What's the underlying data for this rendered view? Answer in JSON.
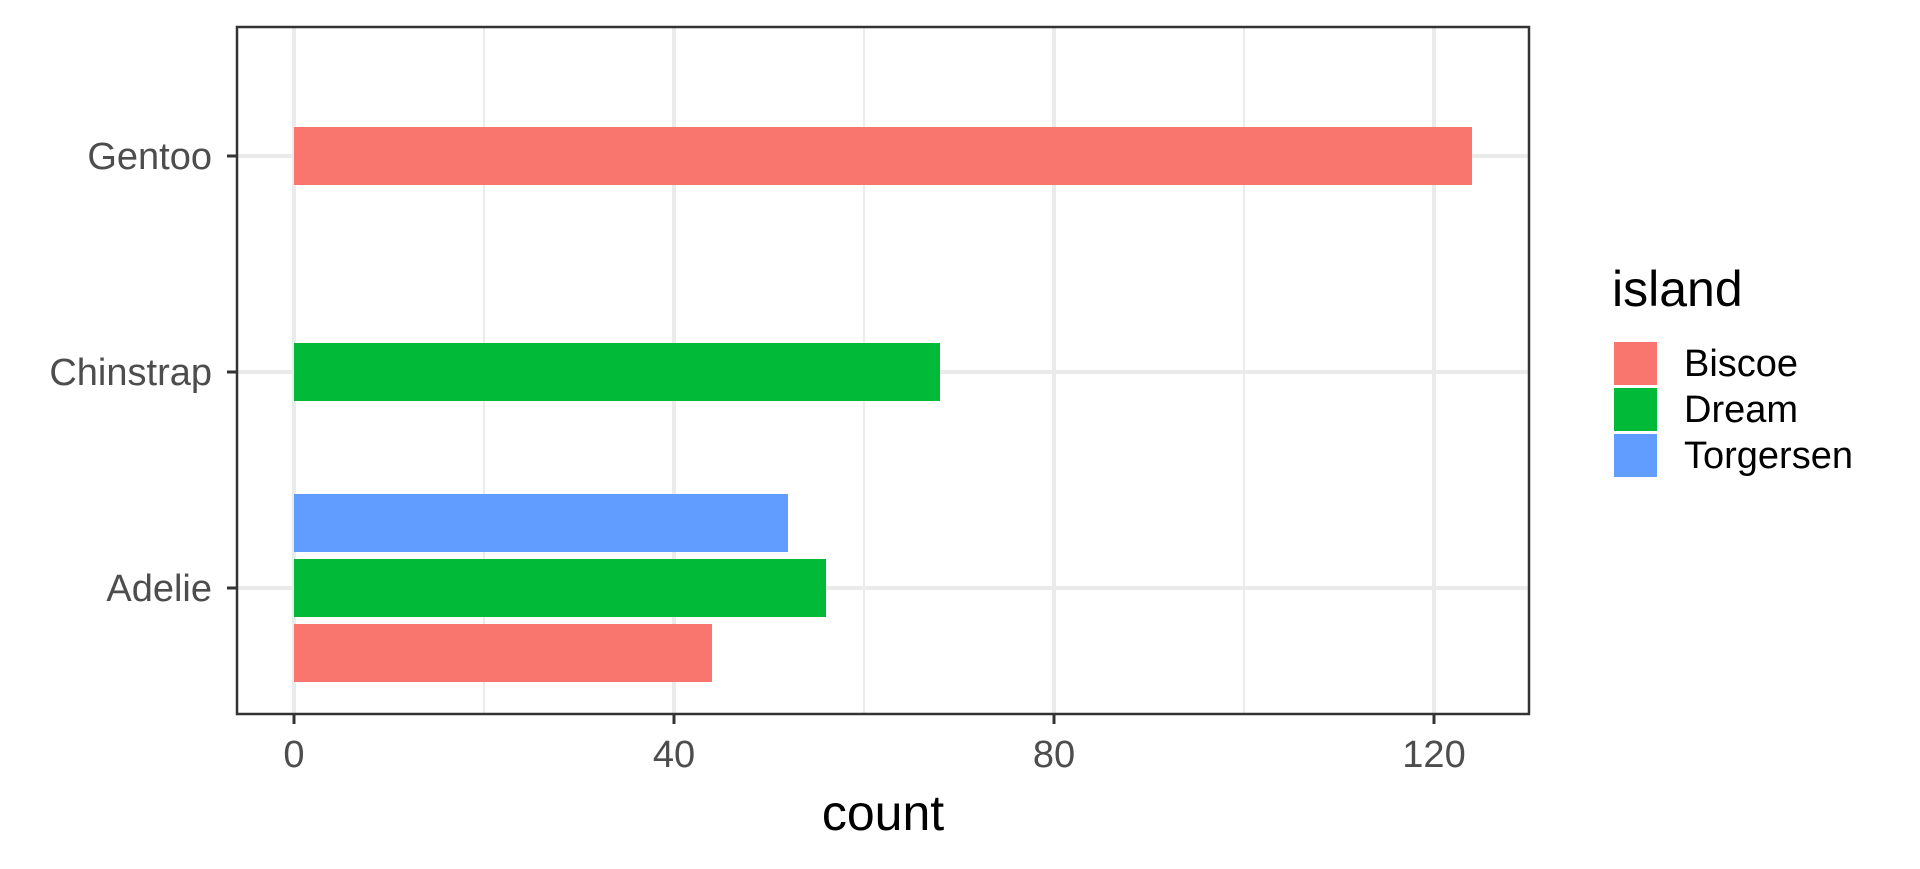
{
  "chart_data": {
    "type": "bar",
    "orientation": "horizontal",
    "grouped": true,
    "title": "",
    "xlabel": "count",
    "ylabel": "",
    "categories": [
      "Adelie",
      "Chinstrap",
      "Gentoo"
    ],
    "series": [
      {
        "name": "Biscoe",
        "color": "#F8766D",
        "values": [
          44,
          0,
          124
        ]
      },
      {
        "name": "Dream",
        "color": "#00BA38",
        "values": [
          56,
          68,
          0
        ]
      },
      {
        "name": "Torgersen",
        "color": "#619CFF",
        "values": [
          52,
          0,
          0
        ]
      }
    ],
    "xlim": [
      -6,
      130
    ],
    "x_ticks": [
      "0",
      "40",
      "80",
      "120"
    ],
    "x_minor_ticks": [
      20,
      60,
      100
    ],
    "grid": true,
    "legend": {
      "title": "island",
      "position": "right"
    },
    "background": "#ffffff",
    "grid_color": "#ebebeb",
    "panel_border_color": "#333333"
  }
}
